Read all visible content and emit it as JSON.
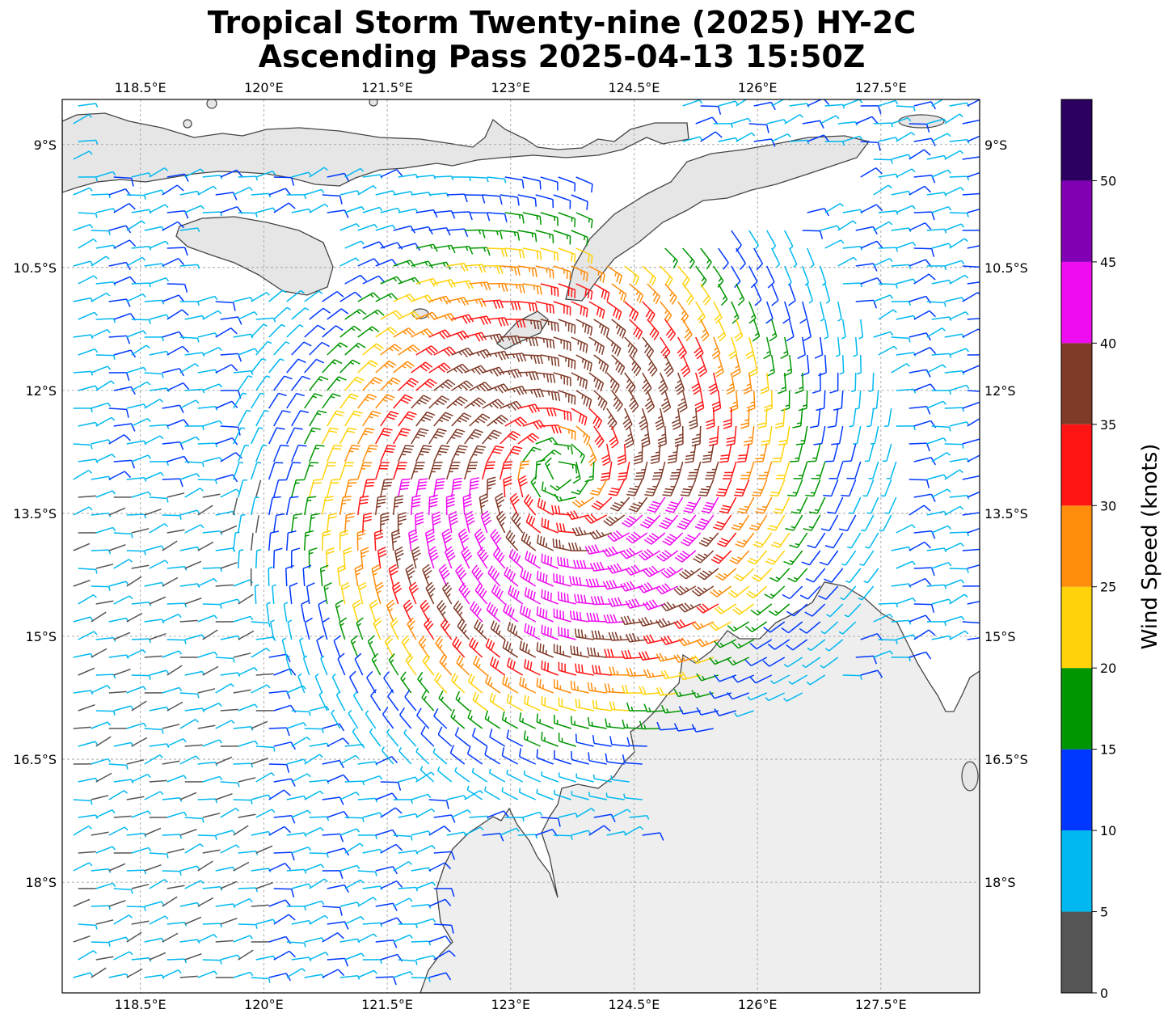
{
  "title_line1": "Tropical Storm Twenty-nine (2025) HY-2C",
  "title_line2": "Ascending Pass 2025-04-13 15:50Z",
  "map": {
    "lon_range": [
      117.55,
      128.7
    ],
    "lat_range": [
      -19.35,
      -8.45
    ],
    "lon_ticks": [
      "118.5°E",
      "120°E",
      "121.5°E",
      "123°E",
      "124.5°E",
      "126°E",
      "127.5°E"
    ],
    "lon_tick_values": [
      118.5,
      120,
      121.5,
      123,
      124.5,
      126,
      127.5
    ],
    "lat_ticks": [
      "9°S",
      "10.5°S",
      "12°S",
      "13.5°S",
      "15°S",
      "16.5°S",
      "18°S"
    ],
    "lat_tick_values": [
      -9,
      -10.5,
      -12,
      -13.5,
      -15,
      -16.5,
      -18
    ],
    "storm_center": {
      "lon": 123.6,
      "lat": -13.0
    },
    "land_color": "#e8e8e8",
    "coast_color": "#444444",
    "grid": true
  },
  "colorbar": {
    "label": "Wind Speed (knots)",
    "ticks": [
      "0",
      "5",
      "10",
      "15",
      "20",
      "25",
      "30",
      "35",
      "40",
      "45",
      "50"
    ],
    "bins": [
      {
        "min": 0,
        "max": 5,
        "color": "#555555"
      },
      {
        "min": 5,
        "max": 10,
        "color": "#00b8f0"
      },
      {
        "min": 10,
        "max": 15,
        "color": "#0038ff"
      },
      {
        "min": 15,
        "max": 20,
        "color": "#009600"
      },
      {
        "min": 20,
        "max": 25,
        "color": "#ffd20a"
      },
      {
        "min": 25,
        "max": 30,
        "color": "#ff8c0a"
      },
      {
        "min": 30,
        "max": 35,
        "color": "#ff1414"
      },
      {
        "min": 35,
        "max": 40,
        "color": "#7f3a28"
      },
      {
        "min": 40,
        "max": 45,
        "color": "#f00cf0"
      },
      {
        "min": 45,
        "max": 50,
        "color": "#8200b4"
      },
      {
        "min": 50,
        "max": 55,
        "color": "#2b0060"
      }
    ]
  }
}
